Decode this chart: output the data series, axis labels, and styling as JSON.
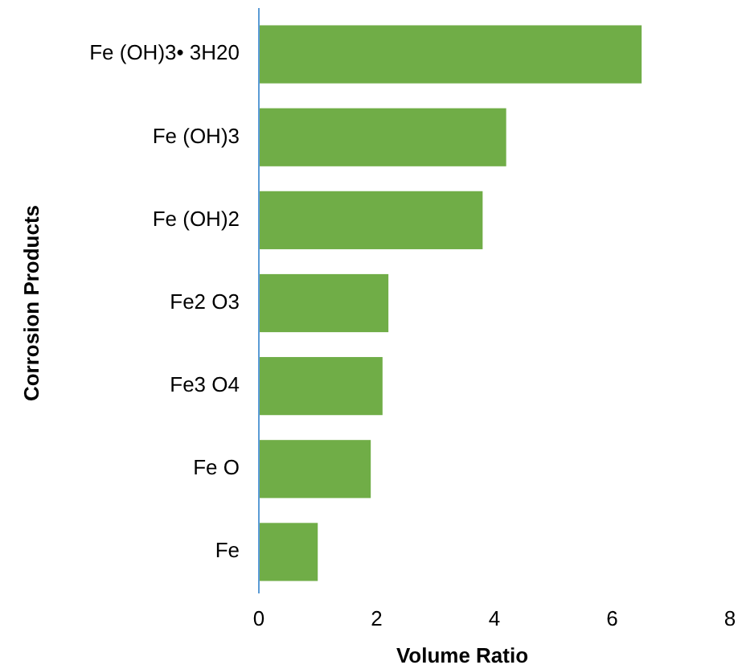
{
  "chart_data": {
    "type": "bar",
    "orientation": "horizontal",
    "xlabel": "Volume Ratio",
    "ylabel": "Corrosion Products",
    "categories": [
      "Fe (OH)3• 3H20",
      "Fe (OH)3",
      "Fe (OH)2",
      "Fe2 O3",
      "Fe3 O4",
      "Fe O",
      "Fe"
    ],
    "values": [
      6.5,
      4.2,
      3.8,
      2.2,
      2.1,
      1.9,
      1.0
    ],
    "color": "#70ad47",
    "xlim": [
      0,
      8
    ],
    "xticks": [
      0,
      2,
      4,
      6,
      8
    ],
    "grid": false
  }
}
